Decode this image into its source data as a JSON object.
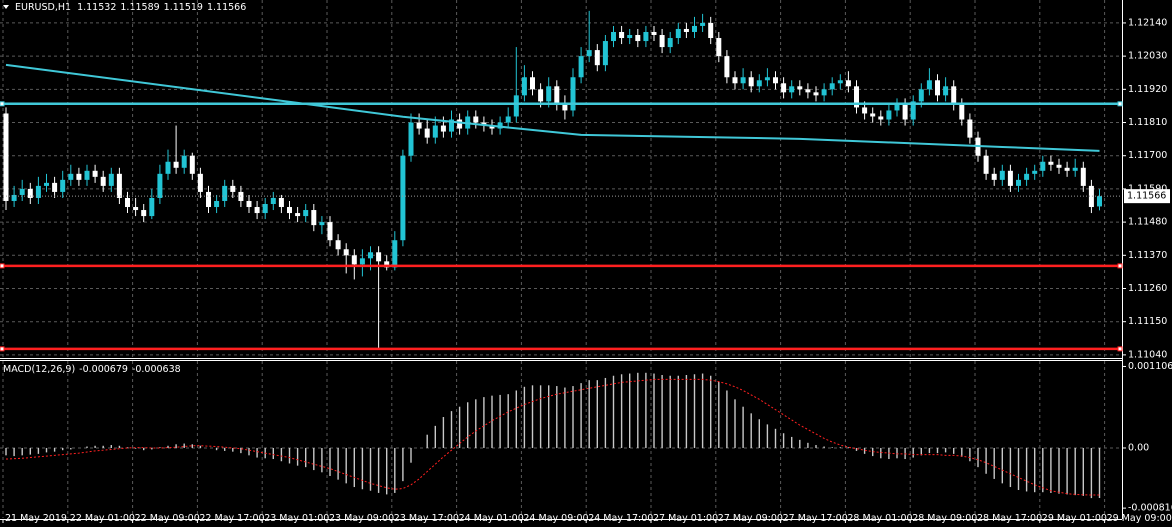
{
  "chart_data": [
    {
      "type": "candlestick",
      "symbol": "EURUSD,H1",
      "bull_color": "#22c4d4",
      "bear_color": "#ffffff",
      "grid": true,
      "ylim": [
        1.11033,
        1.12216
      ],
      "yticks": [
        {
          "value": 1.1214,
          "label": "1.12140"
        },
        {
          "value": 1.1203,
          "label": "1.12030"
        },
        {
          "value": 1.1192,
          "label": "1.11920"
        },
        {
          "value": 1.1181,
          "label": "1.11810"
        },
        {
          "value": 1.117,
          "label": "1.11700"
        },
        {
          "value": 1.1159,
          "label": "1.11590"
        },
        {
          "value": 1.1148,
          "label": "1.11480"
        },
        {
          "value": 1.1137,
          "label": "1.11370"
        },
        {
          "value": 1.1126,
          "label": "1.11260"
        },
        {
          "value": 1.1115,
          "label": "1.11150"
        },
        {
          "value": 1.1104,
          "label": "1.11040"
        }
      ],
      "time_labels": [
        "21 May 2019",
        "22 May 01:00",
        "22 May 09:00",
        "22 May 17:00",
        "23 May 01:00",
        "23 May 09:00",
        "23 May 17:00",
        "24 May 01:00",
        "24 May 09:00",
        "24 May 17:00",
        "27 May 01:00",
        "27 May 09:00",
        "27 May 17:00",
        "28 May 01:00",
        "28 May 09:00",
        "28 May 17:00",
        "29 May 01:00",
        "29 May 09:00"
      ],
      "candles": [
        [
          1.1184,
          1.1186,
          1.1152,
          1.1155
        ],
        [
          1.1155,
          1.116,
          1.1153,
          1.1157
        ],
        [
          1.1157,
          1.1162,
          1.1155,
          1.1159
        ],
        [
          1.1159,
          1.1161,
          1.1154,
          1.1156
        ],
        [
          1.1156,
          1.1163,
          1.1154,
          1.116
        ],
        [
          1.116,
          1.1164,
          1.1158,
          1.1161
        ],
        [
          1.1161,
          1.1163,
          1.1156,
          1.1158
        ],
        [
          1.1158,
          1.1165,
          1.1156,
          1.1162
        ],
        [
          1.1162,
          1.1167,
          1.116,
          1.1164
        ],
        [
          1.1164,
          1.1166,
          1.116,
          1.1162
        ],
        [
          1.1162,
          1.1167,
          1.116,
          1.1165
        ],
        [
          1.1165,
          1.1167,
          1.1161,
          1.1163
        ],
        [
          1.1163,
          1.1165,
          1.1158,
          1.116
        ],
        [
          1.116,
          1.1166,
          1.1158,
          1.1164
        ],
        [
          1.1164,
          1.1166,
          1.1154,
          1.1156
        ],
        [
          1.1156,
          1.1158,
          1.1151,
          1.1153
        ],
        [
          1.1153,
          1.1156,
          1.115,
          1.1152
        ],
        [
          1.1152,
          1.1154,
          1.1148,
          1.115
        ],
        [
          1.115,
          1.1159,
          1.1149,
          1.1156
        ],
        [
          1.1156,
          1.1167,
          1.1154,
          1.1164
        ],
        [
          1.1164,
          1.1172,
          1.1162,
          1.1168
        ],
        [
          1.1168,
          1.118,
          1.1164,
          1.1166
        ],
        [
          1.1166,
          1.1172,
          1.1164,
          1.117
        ],
        [
          1.117,
          1.1171,
          1.1162,
          1.1164
        ],
        [
          1.1164,
          1.1166,
          1.1156,
          1.1158
        ],
        [
          1.1158,
          1.116,
          1.1151,
          1.1153
        ],
        [
          1.1153,
          1.1157,
          1.1151,
          1.1155
        ],
        [
          1.1155,
          1.1162,
          1.1153,
          1.116
        ],
        [
          1.116,
          1.1162,
          1.1156,
          1.1158
        ],
        [
          1.1158,
          1.116,
          1.1153,
          1.1155
        ],
        [
          1.1155,
          1.1157,
          1.1151,
          1.1153
        ],
        [
          1.1153,
          1.1155,
          1.1149,
          1.1151
        ],
        [
          1.1151,
          1.1156,
          1.1149,
          1.1154
        ],
        [
          1.1154,
          1.1158,
          1.1152,
          1.1156
        ],
        [
          1.1156,
          1.1157,
          1.1151,
          1.1153
        ],
        [
          1.1153,
          1.1155,
          1.1149,
          1.1151
        ],
        [
          1.1151,
          1.1153,
          1.1148,
          1.115
        ],
        [
          1.115,
          1.1154,
          1.1148,
          1.1152
        ],
        [
          1.1152,
          1.1154,
          1.1145,
          1.1147
        ],
        [
          1.1147,
          1.115,
          1.1144,
          1.1148
        ],
        [
          1.1148,
          1.115,
          1.114,
          1.1142
        ],
        [
          1.1142,
          1.1144,
          1.1137,
          1.1139
        ],
        [
          1.1139,
          1.1141,
          1.1131,
          1.1137
        ],
        [
          1.1137,
          1.1139,
          1.1129,
          1.1134
        ],
        [
          1.1134,
          1.1139,
          1.113,
          1.1136
        ],
        [
          1.1136,
          1.114,
          1.1132,
          1.1138
        ],
        [
          1.1138,
          1.114,
          1.1106,
          1.1135
        ],
        [
          1.1135,
          1.1137,
          1.1132,
          1.1133
        ],
        [
          1.1133,
          1.1145,
          1.1132,
          1.1142
        ],
        [
          1.1142,
          1.1172,
          1.114,
          1.117
        ],
        [
          1.117,
          1.1184,
          1.1168,
          1.1181
        ],
        [
          1.1181,
          1.1184,
          1.1177,
          1.1179
        ],
        [
          1.1179,
          1.1182,
          1.1174,
          1.1176
        ],
        [
          1.1176,
          1.1183,
          1.1174,
          1.118
        ],
        [
          1.118,
          1.1183,
          1.1176,
          1.1178
        ],
        [
          1.1178,
          1.1185,
          1.1176,
          1.1182
        ],
        [
          1.1182,
          1.1184,
          1.1177,
          1.1179
        ],
        [
          1.1179,
          1.1185,
          1.1177,
          1.1183
        ],
        [
          1.1183,
          1.1185,
          1.1179,
          1.1181
        ],
        [
          1.1181,
          1.1183,
          1.1178,
          1.118
        ],
        [
          1.118,
          1.1182,
          1.1177,
          1.1179
        ],
        [
          1.1179,
          1.1183,
          1.1177,
          1.1181
        ],
        [
          1.1181,
          1.1186,
          1.1179,
          1.1183
        ],
        [
          1.1183,
          1.1206,
          1.1181,
          1.119
        ],
        [
          1.119,
          1.12,
          1.1188,
          1.1196
        ],
        [
          1.1196,
          1.1198,
          1.119,
          1.1192
        ],
        [
          1.1192,
          1.1194,
          1.1186,
          1.1188
        ],
        [
          1.1188,
          1.1196,
          1.1186,
          1.1193
        ],
        [
          1.1193,
          1.1195,
          1.1185,
          1.1187
        ],
        [
          1.1187,
          1.119,
          1.1182,
          1.1185
        ],
        [
          1.1185,
          1.1199,
          1.1183,
          1.1196
        ],
        [
          1.1196,
          1.1206,
          1.1194,
          1.1203
        ],
        [
          1.1203,
          1.1218,
          1.1201,
          1.1205
        ],
        [
          1.1205,
          1.1207,
          1.1198,
          1.12
        ],
        [
          1.12,
          1.121,
          1.1198,
          1.1208
        ],
        [
          1.1208,
          1.1213,
          1.1206,
          1.1211
        ],
        [
          1.1211,
          1.1213,
          1.1207,
          1.1209
        ],
        [
          1.1209,
          1.1212,
          1.1207,
          1.121
        ],
        [
          1.121,
          1.1212,
          1.1206,
          1.1208
        ],
        [
          1.1208,
          1.1213,
          1.1206,
          1.1211
        ],
        [
          1.1211,
          1.1213,
          1.1208,
          1.121
        ],
        [
          1.121,
          1.1212,
          1.1204,
          1.1206
        ],
        [
          1.1206,
          1.1211,
          1.1204,
          1.1209
        ],
        [
          1.1209,
          1.1214,
          1.1207,
          1.1212
        ],
        [
          1.1212,
          1.1214,
          1.1209,
          1.1211
        ],
        [
          1.1211,
          1.1216,
          1.1209,
          1.1213
        ],
        [
          1.1213,
          1.1217,
          1.1211,
          1.1214
        ],
        [
          1.1214,
          1.1216,
          1.1207,
          1.1209
        ],
        [
          1.1209,
          1.1211,
          1.1201,
          1.1203
        ],
        [
          1.1203,
          1.1205,
          1.1194,
          1.1196
        ],
        [
          1.1196,
          1.1198,
          1.1192,
          1.1194
        ],
        [
          1.1194,
          1.1199,
          1.1192,
          1.1196
        ],
        [
          1.1196,
          1.1198,
          1.1191,
          1.1193
        ],
        [
          1.1193,
          1.1197,
          1.1191,
          1.1195
        ],
        [
          1.1195,
          1.1199,
          1.1193,
          1.1196
        ],
        [
          1.1196,
          1.1198,
          1.1192,
          1.1194
        ],
        [
          1.1194,
          1.1196,
          1.1189,
          1.1191
        ],
        [
          1.1191,
          1.1195,
          1.1189,
          1.1193
        ],
        [
          1.1193,
          1.1195,
          1.119,
          1.1192
        ],
        [
          1.1192,
          1.1194,
          1.1189,
          1.1191
        ],
        [
          1.1191,
          1.1193,
          1.1188,
          1.119
        ],
        [
          1.119,
          1.1194,
          1.1188,
          1.1192
        ],
        [
          1.1192,
          1.1196,
          1.119,
          1.1194
        ],
        [
          1.1194,
          1.1197,
          1.1192,
          1.1195
        ],
        [
          1.1195,
          1.1198,
          1.1191,
          1.1193
        ],
        [
          1.1193,
          1.1195,
          1.1184,
          1.1186
        ],
        [
          1.1186,
          1.1188,
          1.1182,
          1.1184
        ],
        [
          1.1184,
          1.1186,
          1.1181,
          1.1183
        ],
        [
          1.1183,
          1.1185,
          1.118,
          1.1182
        ],
        [
          1.1182,
          1.1187,
          1.118,
          1.1185
        ],
        [
          1.1185,
          1.1189,
          1.1183,
          1.1187
        ],
        [
          1.1187,
          1.1189,
          1.118,
          1.1182
        ],
        [
          1.1182,
          1.119,
          1.118,
          1.1188
        ],
        [
          1.1188,
          1.1194,
          1.1186,
          1.1192
        ],
        [
          1.1192,
          1.1199,
          1.119,
          1.1195
        ],
        [
          1.1195,
          1.1197,
          1.1188,
          1.119
        ],
        [
          1.119,
          1.1196,
          1.1188,
          1.1193
        ],
        [
          1.1193,
          1.1195,
          1.1185,
          1.1187
        ],
        [
          1.1187,
          1.1189,
          1.118,
          1.1182
        ],
        [
          1.1182,
          1.1184,
          1.1174,
          1.1176
        ],
        [
          1.1176,
          1.1178,
          1.1168,
          1.117
        ],
        [
          1.117,
          1.1172,
          1.1162,
          1.1164
        ],
        [
          1.1164,
          1.1166,
          1.116,
          1.1162
        ],
        [
          1.1162,
          1.1167,
          1.116,
          1.1165
        ],
        [
          1.1165,
          1.1167,
          1.1158,
          1.116
        ],
        [
          1.116,
          1.1164,
          1.1158,
          1.1162
        ],
        [
          1.1162,
          1.1166,
          1.116,
          1.1164
        ],
        [
          1.1164,
          1.1167,
          1.1162,
          1.1165
        ],
        [
          1.1165,
          1.117,
          1.1163,
          1.1168
        ],
        [
          1.1168,
          1.117,
          1.1165,
          1.1167
        ],
        [
          1.1167,
          1.1169,
          1.1164,
          1.1166
        ],
        [
          1.1166,
          1.1168,
          1.1163,
          1.1165
        ],
        [
          1.1165,
          1.1169,
          1.1163,
          1.1166
        ],
        [
          1.1166,
          1.1168,
          1.1158,
          1.116
        ],
        [
          1.116,
          1.1162,
          1.1151,
          1.1153
        ],
        [
          1.11532,
          1.11589,
          1.11519,
          1.11566
        ]
      ],
      "moving_average": {
        "color": "#40c8d8",
        "x": [
          0,
          36,
          49,
          71,
          98,
          123,
          135
        ],
        "values": [
          1.12001,
          1.11875,
          1.11829,
          1.11769,
          1.11756,
          1.11729,
          1.11716
        ]
      },
      "levels": [
        {
          "value": 1.11872,
          "color": "#40c8d8"
        },
        {
          "value": 1.11335,
          "color": "#ff2020"
        },
        {
          "value": 1.1106,
          "color": "#ff2020"
        }
      ]
    },
    {
      "type": "macd",
      "name": "MACD(12,26,9)",
      "histogram_color": "#c8c8c8",
      "signal_color": "#ff2020",
      "ylim": [
        -0.00095,
        0.00118
      ],
      "yticks": [
        0.001106,
        {
          "value": 0,
          "label": "0.00"
        },
        -0.000816
      ],
      "histogram": [
        -0.0001,
        -0.00011,
        -0.0001,
        -9e-05,
        -8e-05,
        -6e-05,
        -5e-05,
        -3e-05,
        -2e-05,
        0.0,
        2e-05,
        3e-05,
        3e-05,
        4e-05,
        3e-05,
        1e-05,
        -1e-05,
        -3e-05,
        -2e-05,
        1e-05,
        3e-05,
        5e-05,
        6e-05,
        5e-05,
        3e-05,
        0.0,
        -3e-05,
        -4e-05,
        -5e-05,
        -7e-05,
        -0.0001,
        -0.00013,
        -0.00014,
        -0.00015,
        -0.00018,
        -0.00021,
        -0.00024,
        -0.00026,
        -0.0003,
        -0.00033,
        -0.00038,
        -0.00043,
        -0.00048,
        -0.00053,
        -0.00056,
        -0.00058,
        -0.00061,
        -0.00063,
        -0.00061,
        -0.00045,
        -0.0002,
        0.0,
        0.00018,
        0.0003,
        0.00042,
        0.0005,
        0.00056,
        0.00062,
        0.00066,
        0.00069,
        0.00071,
        0.00072,
        0.00073,
        0.00078,
        0.00083,
        0.00085,
        0.00085,
        0.00085,
        0.00084,
        0.00082,
        0.00084,
        0.00088,
        0.00092,
        0.00092,
        0.00095,
        0.00098,
        0.001,
        0.00101,
        0.00102,
        0.00102,
        0.00101,
        0.00099,
        0.00098,
        0.00098,
        0.00099,
        0.001,
        0.00101,
        0.00098,
        0.0009,
        0.00078,
        0.00066,
        0.00056,
        0.00047,
        0.00039,
        0.00032,
        0.00026,
        0.0002,
        0.00015,
        0.00011,
        7e-05,
        4e-05,
        2e-05,
        1e-05,
        1e-05,
        1e-05,
        -4e-05,
        -8e-05,
        -0.00011,
        -0.00014,
        -0.00015,
        -0.00014,
        -0.00015,
        -0.00013,
        -0.0001,
        -7e-05,
        -7e-05,
        -6e-05,
        -8e-05,
        -0.00012,
        -0.00018,
        -0.00026,
        -0.00035,
        -0.00042,
        -0.00048,
        -0.00053,
        -0.00057,
        -0.00059,
        -0.0006,
        -0.0006,
        -0.00061,
        -0.00062,
        -0.00063,
        -0.00064,
        -0.00065,
        -0.00068,
        -0.000679
      ],
      "signal": [
        -0.00015,
        -0.000145,
        -0.00014,
        -0.00013,
        -0.00012,
        -0.00011,
        -0.0001,
        -9e-05,
        -8e-05,
        -7e-05,
        -5.5e-05,
        -4e-05,
        -3e-05,
        -2e-05,
        -1e-05,
        0.0,
        5e-06,
        5e-06,
        0.0,
        0.0,
        5e-06,
        1e-05,
        2e-05,
        3e-05,
        3e-05,
        2.5e-05,
        2e-05,
        1e-05,
        0.0,
        -1e-05,
        -3e-05,
        -5e-05,
        -7e-05,
        -9e-05,
        -0.00011,
        -0.00013,
        -0.00016,
        -0.00019,
        -0.00022,
        -0.00025,
        -0.00028,
        -0.00032,
        -0.00036,
        -0.0004,
        -0.00044,
        -0.00048,
        -0.00051,
        -0.00054,
        -0.00056,
        -0.00055,
        -0.0005,
        -0.00042,
        -0.00032,
        -0.00022,
        -0.00012,
        -3e-05,
        6e-05,
        0.00015,
        0.00023,
        0.0003,
        0.00037,
        0.00043,
        0.00049,
        0.00054,
        0.00059,
        0.00063,
        0.00067,
        0.0007,
        0.00073,
        0.00075,
        0.00077,
        0.00079,
        0.00081,
        0.00083,
        0.00085,
        0.00087,
        0.00089,
        0.0009,
        0.00091,
        0.00092,
        0.00093,
        0.00093,
        0.00093,
        0.00093,
        0.00093,
        0.00093,
        0.00093,
        0.00092,
        0.0009,
        0.00087,
        0.00083,
        0.00078,
        0.00072,
        0.00066,
        0.00059,
        0.00052,
        0.00045,
        0.00038,
        0.00031,
        0.00025,
        0.00019,
        0.00013,
        8e-05,
        4e-05,
        1e-05,
        -1e-05,
        -3e-05,
        -5e-05,
        -6e-05,
        -7e-05,
        -8e-05,
        -8e-05,
        -9e-05,
        -9e-05,
        -9e-05,
        -9e-05,
        -0.0001,
        -0.0001,
        -0.00011,
        -0.00013,
        -0.00016,
        -0.0002,
        -0.00025,
        -0.0003,
        -0.00035,
        -0.0004,
        -0.00045,
        -0.0005,
        -0.00054,
        -0.00058,
        -0.0006,
        -0.00062,
        -0.00063,
        -0.000635,
        -0.000638,
        -0.000638
      ]
    }
  ]
}
